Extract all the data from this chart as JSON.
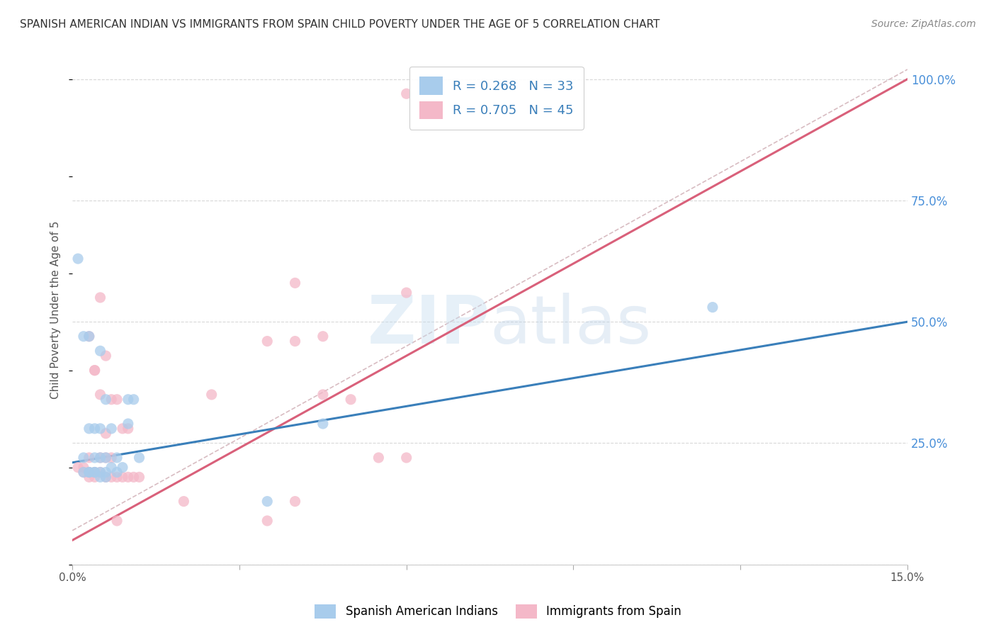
{
  "title": "SPANISH AMERICAN INDIAN VS IMMIGRANTS FROM SPAIN CHILD POVERTY UNDER THE AGE OF 5 CORRELATION CHART",
  "source": "Source: ZipAtlas.com",
  "ylabel": "Child Poverty Under the Age of 5",
  "xlim": [
    0.0,
    0.15
  ],
  "ylim": [
    0.0,
    1.05
  ],
  "xticks": [
    0.0,
    0.03,
    0.06,
    0.09,
    0.12,
    0.15
  ],
  "xticklabels": [
    "0.0%",
    "",
    "",
    "",
    "",
    "15.0%"
  ],
  "yticks_right": [
    0.0,
    0.25,
    0.5,
    0.75,
    1.0
  ],
  "yticklabels_right": [
    "",
    "25.0%",
    "50.0%",
    "75.0%",
    "100.0%"
  ],
  "watermark": "ZIPatlas",
  "legend_label1": "Spanish American Indians",
  "legend_label2": "Immigrants from Spain",
  "color_blue": "#a8ccec",
  "color_pink": "#f4b8c8",
  "color_blue_dark": "#3a7fba",
  "color_pink_dark": "#d9607a",
  "blue_scatter_x": [
    0.001,
    0.002,
    0.002,
    0.003,
    0.003,
    0.003,
    0.004,
    0.004,
    0.004,
    0.005,
    0.005,
    0.005,
    0.005,
    0.006,
    0.006,
    0.006,
    0.007,
    0.007,
    0.008,
    0.008,
    0.009,
    0.01,
    0.01,
    0.011,
    0.012,
    0.002,
    0.003,
    0.004,
    0.005,
    0.006,
    0.035,
    0.045,
    0.115
  ],
  "blue_scatter_y": [
    0.63,
    0.22,
    0.47,
    0.47,
    0.28,
    0.19,
    0.28,
    0.22,
    0.19,
    0.44,
    0.28,
    0.22,
    0.19,
    0.34,
    0.22,
    0.19,
    0.28,
    0.2,
    0.22,
    0.19,
    0.2,
    0.34,
    0.29,
    0.34,
    0.22,
    0.19,
    0.19,
    0.19,
    0.18,
    0.18,
    0.13,
    0.29,
    0.53
  ],
  "pink_scatter_x": [
    0.001,
    0.002,
    0.002,
    0.003,
    0.003,
    0.003,
    0.004,
    0.004,
    0.004,
    0.005,
    0.005,
    0.005,
    0.006,
    0.006,
    0.006,
    0.007,
    0.007,
    0.007,
    0.008,
    0.008,
    0.009,
    0.009,
    0.01,
    0.01,
    0.011,
    0.012,
    0.003,
    0.004,
    0.005,
    0.006,
    0.02,
    0.025,
    0.035,
    0.04,
    0.045,
    0.05,
    0.055,
    0.06,
    0.06,
    0.04,
    0.045,
    0.008,
    0.035,
    0.04,
    0.06
  ],
  "pink_scatter_y": [
    0.2,
    0.2,
    0.19,
    0.22,
    0.19,
    0.18,
    0.4,
    0.19,
    0.18,
    0.55,
    0.22,
    0.19,
    0.43,
    0.22,
    0.18,
    0.34,
    0.22,
    0.18,
    0.34,
    0.18,
    0.28,
    0.18,
    0.28,
    0.18,
    0.18,
    0.18,
    0.47,
    0.4,
    0.35,
    0.27,
    0.13,
    0.35,
    0.46,
    0.58,
    0.47,
    0.34,
    0.22,
    0.22,
    0.97,
    0.46,
    0.35,
    0.09,
    0.09,
    0.13,
    0.56
  ],
  "blue_line_x": [
    0.0,
    0.15
  ],
  "blue_line_y": [
    0.21,
    0.5
  ],
  "pink_line_x": [
    0.0,
    0.15
  ],
  "pink_line_y": [
    0.05,
    1.0
  ],
  "diagonal_line_x": [
    0.0,
    0.15
  ],
  "diagonal_line_y": [
    0.07,
    1.02
  ],
  "grid_color": "#d8d8d8",
  "background_color": "#ffffff",
  "title_fontsize": 11,
  "axis_label_fontsize": 11,
  "tick_fontsize": 11,
  "legend_fontsize": 13,
  "source_fontsize": 10
}
